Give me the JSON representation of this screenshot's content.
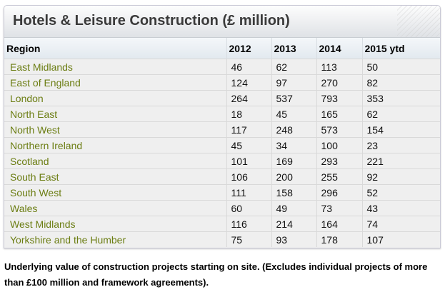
{
  "title": "Hotels & Leisure Construction (£ million)",
  "table": {
    "headers": [
      "Region",
      "2012",
      "2013",
      "2014",
      "2015 ytd"
    ],
    "rows": [
      [
        "East Midlands",
        "46",
        "62",
        "113",
        "50"
      ],
      [
        "East of England",
        "124",
        "97",
        "270",
        "82"
      ],
      [
        "London",
        "264",
        "537",
        "793",
        "353"
      ],
      [
        "North East",
        "18",
        "45",
        "165",
        "62"
      ],
      [
        "North West",
        "117",
        "248",
        "573",
        "154"
      ],
      [
        "Northern Ireland",
        "45",
        "34",
        "100",
        "23"
      ],
      [
        "Scotland",
        "101",
        "169",
        "293",
        "221"
      ],
      [
        "South East",
        "106",
        "200",
        "255",
        "92"
      ],
      [
        "South West",
        "111",
        "158",
        "296",
        "52"
      ],
      [
        "Wales",
        "60",
        "49",
        "73",
        "43"
      ],
      [
        "West Midlands",
        "116",
        "214",
        "164",
        "74"
      ],
      [
        "Yorkshire and the Humber",
        "75",
        "93",
        "178",
        "107"
      ]
    ]
  },
  "caption": "Underlying value of construction projects starting on site. (Excludes individual projects of more than £100 million and framework agreements).",
  "colors": {
    "region_text": "#6b7d12",
    "title_text": "#3a3a3a"
  }
}
